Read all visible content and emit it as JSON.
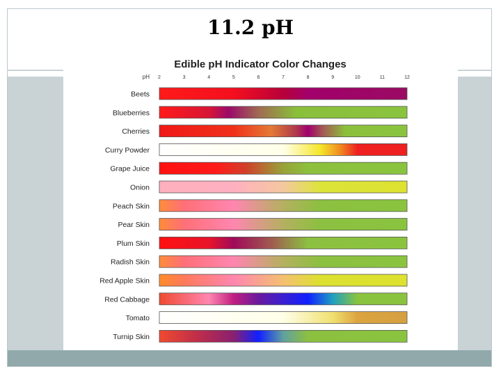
{
  "slide": {
    "title": "11.2 pH"
  },
  "chart_data": {
    "type": "heatmap",
    "title": "Edible pH Indicator Color Changes",
    "xlabel": "pH",
    "x_ticks": [
      2,
      3,
      4,
      5,
      6,
      7,
      8,
      9,
      10,
      11,
      12
    ],
    "xlim": [
      2,
      12
    ],
    "series": [
      {
        "name": "Beets",
        "stops": [
          [
            2,
            "#ff1a1a"
          ],
          [
            5,
            "#f40f1e"
          ],
          [
            7,
            "#b8003a"
          ],
          [
            8,
            "#a2006a"
          ],
          [
            12,
            "#9b0a63"
          ]
        ]
      },
      {
        "name": "Blueberries",
        "stops": [
          [
            2,
            "#ff1a1a"
          ],
          [
            4,
            "#d81535"
          ],
          [
            4.8,
            "#9b0a6a"
          ],
          [
            6,
            "#a06a52"
          ],
          [
            7.5,
            "#8abf3a"
          ],
          [
            12,
            "#8ac43f"
          ]
        ]
      },
      {
        "name": "Cherries",
        "stops": [
          [
            2,
            "#f01818"
          ],
          [
            5,
            "#f0301a"
          ],
          [
            6.5,
            "#e47a35"
          ],
          [
            7.5,
            "#b03a4c"
          ],
          [
            8,
            "#a0006e"
          ],
          [
            8.6,
            "#a45a52"
          ],
          [
            9.5,
            "#8cbf3c"
          ],
          [
            12,
            "#8ac43f"
          ]
        ]
      },
      {
        "name": "Curry Powder",
        "stops": [
          [
            2,
            "#ffffff"
          ],
          [
            7,
            "#ffffe8"
          ],
          [
            8.5,
            "#f5e62a"
          ],
          [
            9.3,
            "#f08a20"
          ],
          [
            10,
            "#ee2020"
          ],
          [
            12,
            "#ee2020"
          ]
        ]
      },
      {
        "name": "Grape Juice",
        "stops": [
          [
            2,
            "#ff1010"
          ],
          [
            4.3,
            "#ff1a1a"
          ],
          [
            5.5,
            "#d0402a"
          ],
          [
            7,
            "#98a23a"
          ],
          [
            8,
            "#8cc03d"
          ],
          [
            12,
            "#8ac43f"
          ]
        ]
      },
      {
        "name": "Onion",
        "stops": [
          [
            2,
            "#ffb0be"
          ],
          [
            5,
            "#ffb0c0"
          ],
          [
            7,
            "#f4c8a0"
          ],
          [
            8.5,
            "#dce43a"
          ],
          [
            12,
            "#dde230"
          ]
        ]
      },
      {
        "name": "Peach Skin",
        "stops": [
          [
            2,
            "#ff8c3a"
          ],
          [
            3,
            "#ff6f78"
          ],
          [
            5,
            "#ff86b0"
          ],
          [
            7,
            "#b4b060"
          ],
          [
            8.5,
            "#8cc040"
          ],
          [
            12,
            "#8ac43f"
          ]
        ]
      },
      {
        "name": "Pear Skin",
        "stops": [
          [
            2,
            "#ff8c3a"
          ],
          [
            3,
            "#ff6f78"
          ],
          [
            5,
            "#ff86b0"
          ],
          [
            7,
            "#b4b060"
          ],
          [
            8.5,
            "#8cc040"
          ],
          [
            12,
            "#8ac43f"
          ]
        ]
      },
      {
        "name": "Plum Skin",
        "stops": [
          [
            2,
            "#ff1010"
          ],
          [
            4,
            "#e8142a"
          ],
          [
            5,
            "#a00a5a"
          ],
          [
            6.5,
            "#a05a50"
          ],
          [
            8,
            "#8cc040"
          ],
          [
            12,
            "#8ac43f"
          ]
        ]
      },
      {
        "name": "Radish Skin",
        "stops": [
          [
            2,
            "#ff8c3a"
          ],
          [
            3,
            "#ff6f78"
          ],
          [
            5,
            "#ff86b0"
          ],
          [
            7,
            "#b4b060"
          ],
          [
            8.5,
            "#8cc040"
          ],
          [
            12,
            "#8ac43f"
          ]
        ]
      },
      {
        "name": "Red Apple Skin",
        "stops": [
          [
            2,
            "#ff8c2a"
          ],
          [
            3,
            "#ff7a5a"
          ],
          [
            5,
            "#ff86b0"
          ],
          [
            7,
            "#f4c070"
          ],
          [
            8.5,
            "#dce030"
          ],
          [
            12,
            "#dde230"
          ]
        ]
      },
      {
        "name": "Red Cabbage",
        "stops": [
          [
            2,
            "#f04a30"
          ],
          [
            4,
            "#ff86b0"
          ],
          [
            5,
            "#c01e80"
          ],
          [
            6,
            "#6a1a9e"
          ],
          [
            7,
            "#3a20d0"
          ],
          [
            8,
            "#1020ff"
          ],
          [
            9,
            "#20a0c0"
          ],
          [
            10,
            "#8ac43f"
          ],
          [
            12,
            "#8ac43f"
          ]
        ]
      },
      {
        "name": "Tomato",
        "stops": [
          [
            2,
            "#ffffff"
          ],
          [
            7,
            "#ffffe8"
          ],
          [
            9,
            "#f0e070"
          ],
          [
            10,
            "#dca440"
          ],
          [
            12,
            "#d4a040"
          ]
        ]
      },
      {
        "name": "Turnip Skin",
        "stops": [
          [
            2,
            "#f04a30"
          ],
          [
            3.5,
            "#c02e48"
          ],
          [
            5,
            "#8a2070"
          ],
          [
            6,
            "#1020ff"
          ],
          [
            7,
            "#60a0a0"
          ],
          [
            8,
            "#8cc040"
          ],
          [
            12,
            "#8ac43f"
          ]
        ]
      }
    ]
  }
}
